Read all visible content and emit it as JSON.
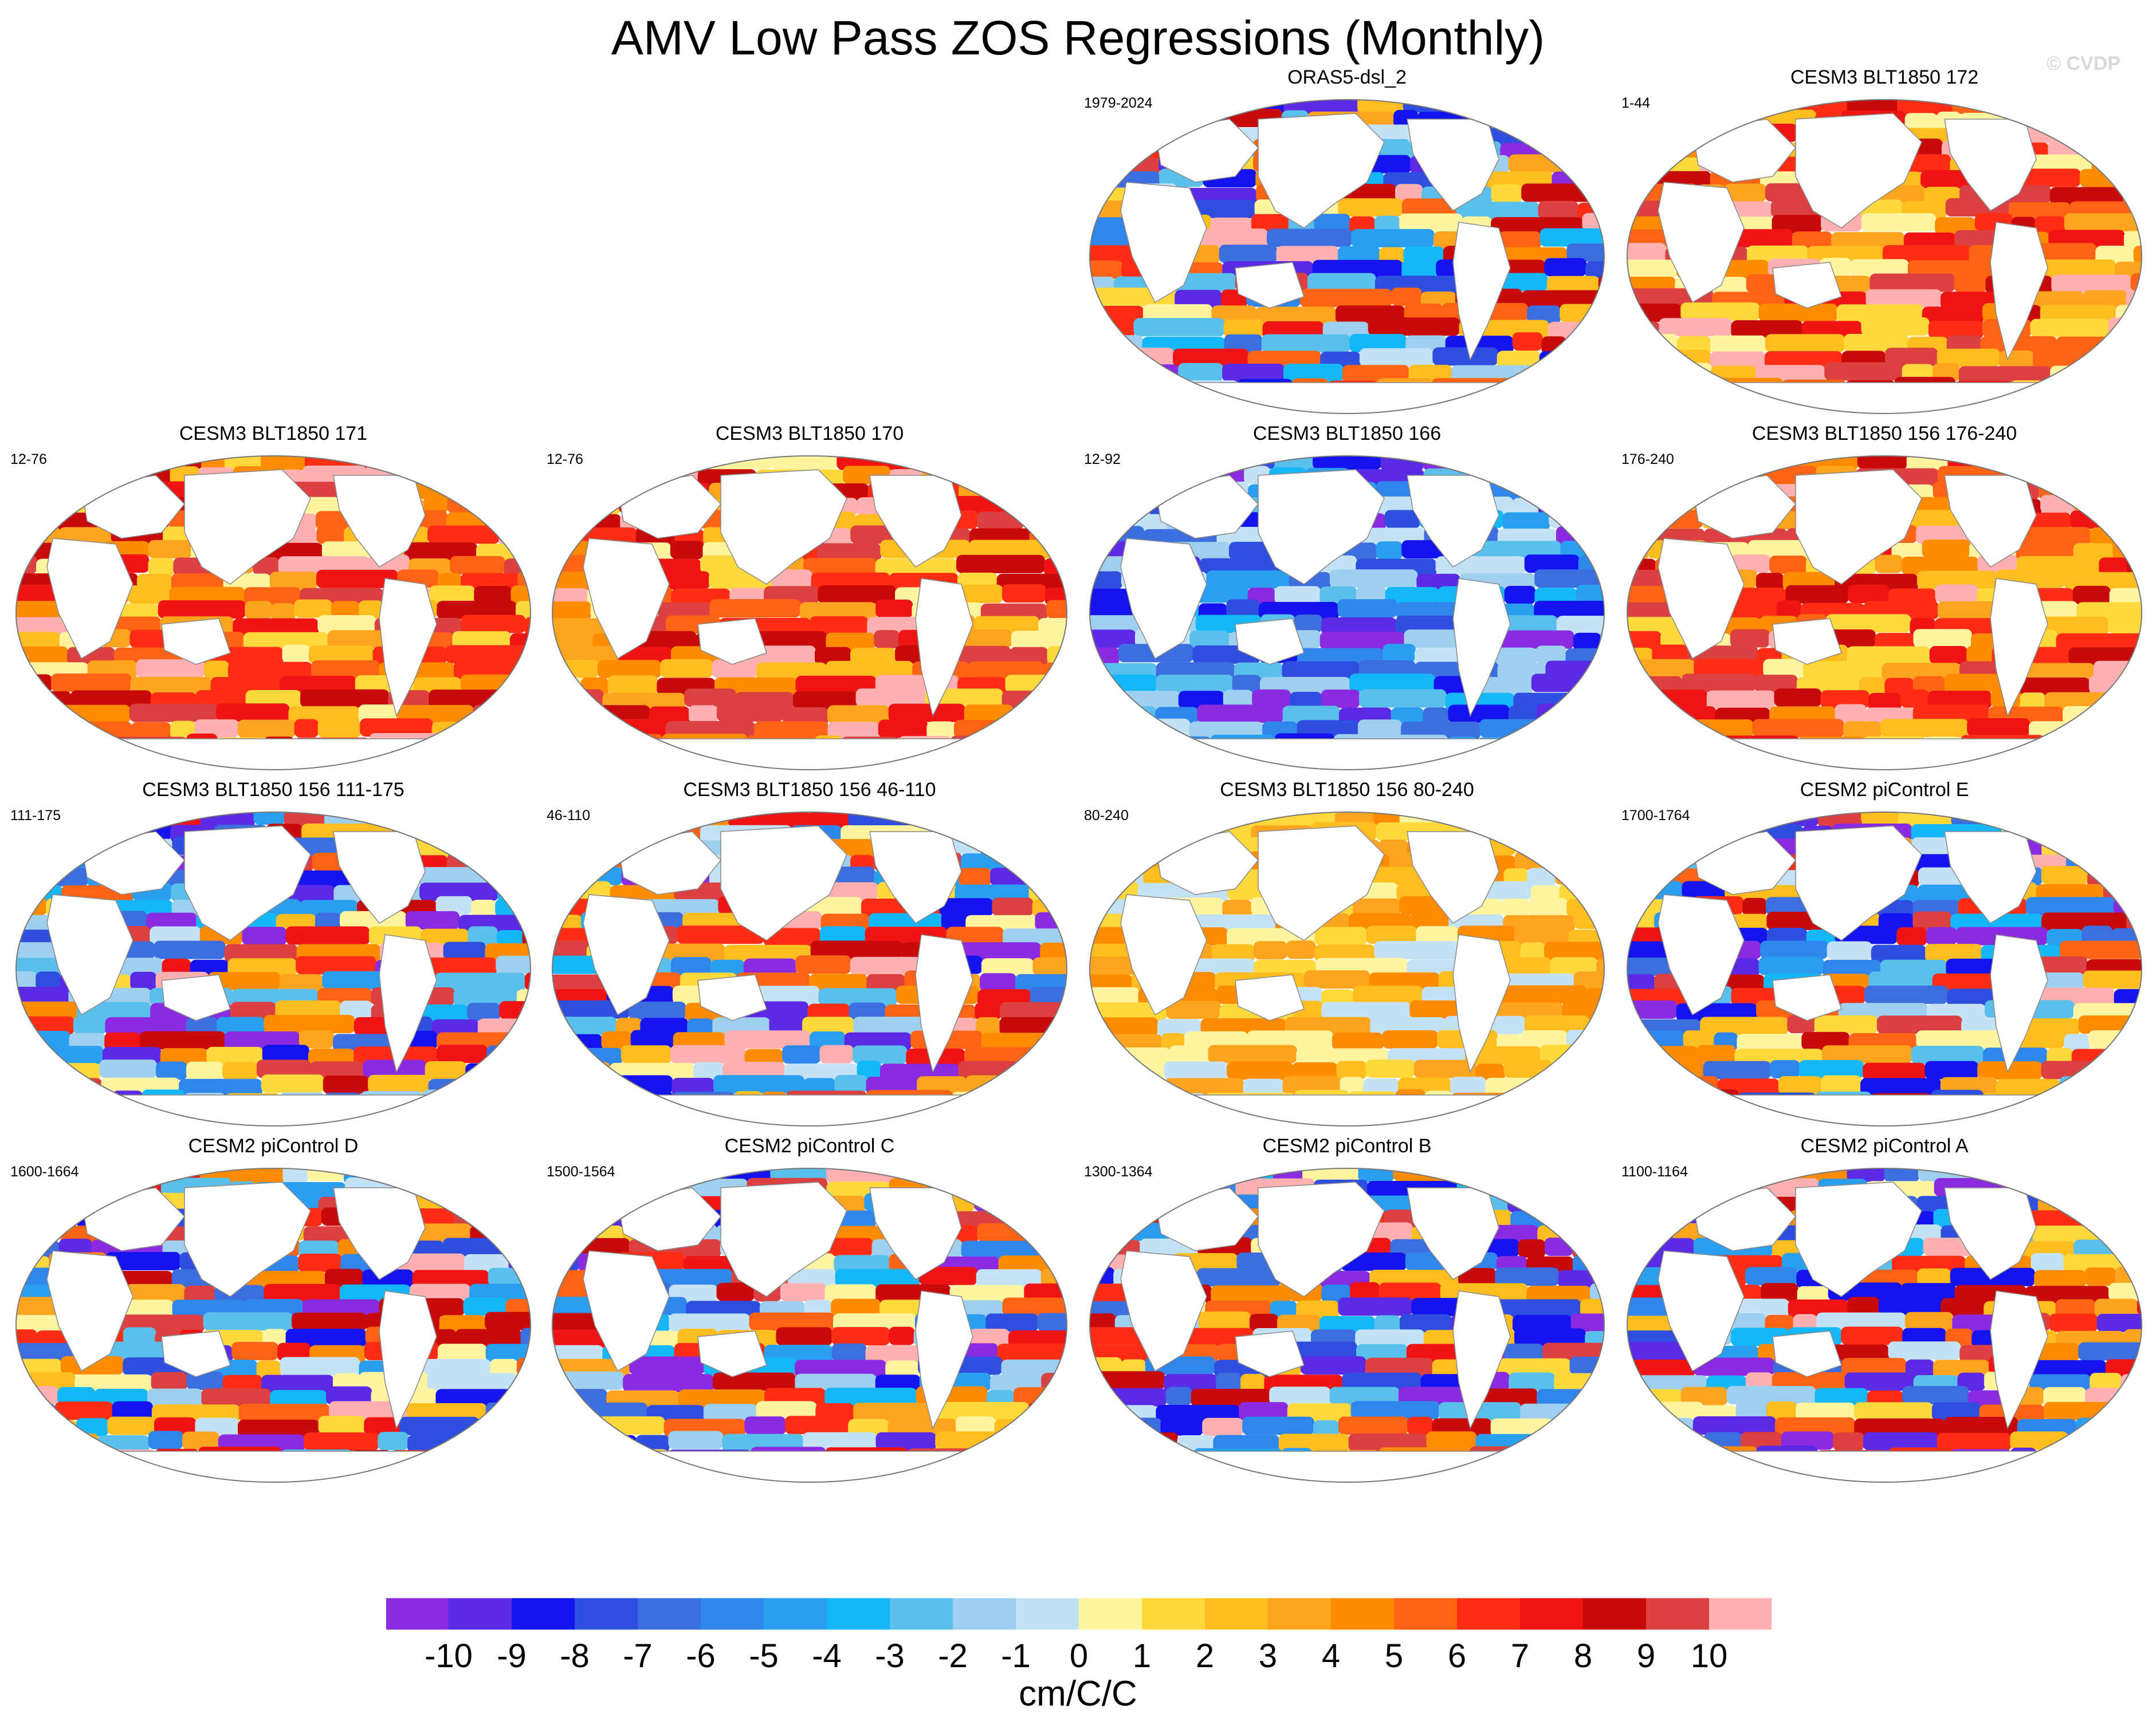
{
  "title": "AMV Low Pass ZOS Regressions (Monthly)",
  "credit": "© CVDP",
  "chart_data": {
    "type": "heatmap",
    "projection": "Robinson-like global ocean maps",
    "variable": "ZOS regression onto AMV index (low pass, monthly)",
    "colorbar": {
      "units": "cm/C/C",
      "ticks": [
        "-10",
        "-9",
        "-8",
        "-7",
        "-6",
        "-5",
        "-4",
        "-3",
        "-2",
        "-1",
        "0",
        "1",
        "2",
        "3",
        "4",
        "5",
        "6",
        "7",
        "8",
        "9",
        "10"
      ],
      "colors": [
        "#8a2be2",
        "#5a2ae6",
        "#1414f0",
        "#2e4fe0",
        "#3c6ee0",
        "#2f86ec",
        "#2a9ef0",
        "#14b8f8",
        "#5bbfec",
        "#9fcfee",
        "#c4e2f6",
        "#fff4a0",
        "#ffd93c",
        "#ffbe1e",
        "#ffa41e",
        "#ff8c00",
        "#ff6414",
        "#ff2d14",
        "#f01414",
        "#c80a0a",
        "#dc4040",
        "#ffb0b0"
      ]
    },
    "panels": [
      {
        "title": "ORAS5-dsl_2",
        "period": "1979-2024",
        "dominant": "mixed"
      },
      {
        "title": "CESM3 BLT1850 172",
        "period": "1-44",
        "dominant": "positive"
      },
      {
        "title": "CESM3 BLT1850 171",
        "period": "12-76",
        "dominant": "positive"
      },
      {
        "title": "CESM3 BLT1850 170",
        "period": "12-76",
        "dominant": "positive"
      },
      {
        "title": "CESM3 BLT1850 166",
        "period": "12-92",
        "dominant": "negative"
      },
      {
        "title": "CESM3 BLT1850 156 176-240",
        "period": "176-240",
        "dominant": "positive"
      },
      {
        "title": "CESM3 BLT1850 156 111-175",
        "period": "111-175",
        "dominant": "mixed"
      },
      {
        "title": "CESM3 BLT1850 156 46-110",
        "period": "46-110",
        "dominant": "mixed"
      },
      {
        "title": "CESM3 BLT1850 156 80-240",
        "period": "80-240",
        "dominant": "weak-positive"
      },
      {
        "title": "CESM2 piControl E",
        "period": "1700-1764",
        "dominant": "mixed"
      },
      {
        "title": "CESM2 piControl D",
        "period": "1600-1664",
        "dominant": "mixed"
      },
      {
        "title": "CESM2 piControl C",
        "period": "1500-1564",
        "dominant": "mixed"
      },
      {
        "title": "CESM2 piControl B",
        "period": "1300-1364",
        "dominant": "mixed"
      },
      {
        "title": "CESM2 piControl A",
        "period": "1100-1164",
        "dominant": "mixed"
      }
    ]
  }
}
